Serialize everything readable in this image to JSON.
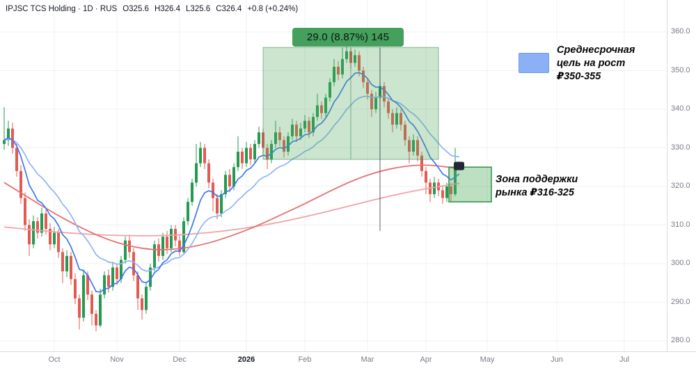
{
  "header": {
    "title": "IPJSC TCS Holding · 1D · RUS",
    "ohlc": [
      "O325.6",
      "H326.4",
      "L325.6",
      "C326.4"
    ],
    "change": "+0.8 (+0.24%)"
  },
  "annotations": {
    "measure_label": "29.0 (8.87%) 145",
    "target_lines": [
      "Среднесрочная",
      "цель на рост",
      "₽350-355"
    ],
    "support_lines": [
      "Зона поддержки",
      "рынка ₽316-325"
    ]
  },
  "price_axis": {
    "labels": [
      "360.0",
      "350.0",
      "340.0",
      "330.0",
      "320.0",
      "310.0",
      "300.0",
      "290.0",
      "280.0"
    ]
  },
  "time_axis": {
    "labels": [
      "Oct",
      "Nov",
      "Dec",
      "2026",
      "Feb",
      "Mar",
      "Apr",
      "May",
      "Jun",
      "Jul"
    ]
  },
  "colors": {
    "up": "#239a52",
    "down": "#e25a52",
    "ema_fast": "#3c78f0",
    "ema_slow": "#8fb3f7",
    "ma_red_fast": "#e57070",
    "ma_red_slow": "#efa2a8",
    "grid": "#eef0f4",
    "axis_border": "#d8dbe1",
    "box_fill": "rgba(82,170,94,0.30)",
    "box_border": "rgba(40,120,60,0.50)",
    "zone_fill": "rgba(82,170,94,0.38)",
    "zone_border": "#2f8f46",
    "badge_bg": "#44a05c",
    "swatch_blue": "#8cb0f6",
    "measure_line": "#3a4150",
    "flag_bg": "#232836",
    "text_dark": "#131722",
    "text_gray": "#787b86"
  },
  "chart_data": {
    "type": "candlestick",
    "title": "IPJSC TCS Holding",
    "timeframe": "1D",
    "region": "RUS",
    "ylim": [
      278,
      362
    ],
    "price_ticks": [
      360,
      350,
      340,
      330,
      320,
      310,
      300,
      290,
      280
    ],
    "last_bar": {
      "o": 325.6,
      "h": 326.4,
      "l": 325.6,
      "c": 326.4,
      "change": 0.8,
      "change_pct": 0.24
    },
    "measurement": {
      "price_change": 29.0,
      "percent": 8.87,
      "value": 145,
      "from_price": 327,
      "to_price": 356
    },
    "target_zone_prices": [
      350,
      355
    ],
    "support_zone_prices": [
      316,
      325
    ],
    "month_ticks": [
      {
        "label": "Oct",
        "index": 12
      },
      {
        "label": "Nov",
        "index": 27
      },
      {
        "label": "Dec",
        "index": 42
      },
      {
        "label": "2026",
        "index": 58,
        "bold": true
      },
      {
        "label": "Feb",
        "index": 72
      },
      {
        "label": "Mar",
        "index": 87
      },
      {
        "label": "Apr",
        "index": 101
      },
      {
        "label": "May",
        "px": 700
      },
      {
        "label": "Jun",
        "px": 800
      },
      {
        "label": "Jul",
        "px": 897
      }
    ],
    "candles": [
      [
        331,
        340.5,
        329.5,
        332
      ],
      [
        332,
        337,
        330.5,
        335
      ],
      [
        335,
        336.5,
        328.5,
        330
      ],
      [
        330,
        331,
        322.5,
        324
      ],
      [
        324,
        325.5,
        315.5,
        317
      ],
      [
        317,
        318.5,
        308.5,
        310
      ],
      [
        310,
        311.5,
        302,
        305
      ],
      [
        305,
        312.5,
        304,
        311
      ],
      [
        311,
        312,
        306.5,
        308
      ],
      [
        308,
        314.5,
        307,
        313
      ],
      [
        313,
        314,
        307.5,
        309
      ],
      [
        309,
        310.5,
        303.5,
        305
      ],
      [
        305,
        309.5,
        304,
        308
      ],
      [
        308,
        309,
        301.5,
        303
      ],
      [
        303,
        304,
        295,
        298
      ],
      [
        298,
        303.5,
        296.5,
        302
      ],
      [
        302,
        303,
        294.5,
        296
      ],
      [
        296,
        297.5,
        289.5,
        291
      ],
      [
        291,
        292,
        283,
        286
      ],
      [
        286,
        298.5,
        285,
        297
      ],
      [
        297,
        298,
        290.5,
        292
      ],
      [
        292,
        293,
        284,
        287
      ],
      [
        287,
        288,
        282.5,
        284
      ],
      [
        284,
        293.5,
        283.5,
        292
      ],
      [
        292,
        298,
        291,
        297
      ],
      [
        297,
        298.5,
        292.5,
        294
      ],
      [
        294,
        300.5,
        293,
        299
      ],
      [
        299,
        300,
        294.5,
        296
      ],
      [
        296,
        302,
        295,
        301
      ],
      [
        301,
        307,
        300,
        306
      ],
      [
        306,
        307.5,
        301.5,
        303
      ],
      [
        303,
        304,
        295.5,
        297
      ],
      [
        297,
        298,
        288,
        291
      ],
      [
        291,
        292,
        285.5,
        288
      ],
      [
        288,
        295,
        287,
        294
      ],
      [
        294,
        300,
        293,
        299
      ],
      [
        299,
        306,
        298,
        305
      ],
      [
        305,
        306.5,
        300.5,
        302
      ],
      [
        302,
        308,
        301,
        307
      ],
      [
        307,
        308.5,
        302.5,
        304
      ],
      [
        304,
        310,
        303,
        309
      ],
      [
        309,
        310,
        304.5,
        306
      ],
      [
        306,
        307.5,
        302,
        303
      ],
      [
        303,
        312,
        302.5,
        311
      ],
      [
        311,
        317,
        310,
        316
      ],
      [
        316,
        322,
        315,
        321
      ],
      [
        321,
        331,
        320,
        326
      ],
      [
        326,
        331.5,
        325,
        330
      ],
      [
        330,
        331,
        324.5,
        326
      ],
      [
        326,
        327,
        319.5,
        321
      ],
      [
        321,
        322,
        313.5,
        317
      ],
      [
        317,
        318,
        311.5,
        313
      ],
      [
        313,
        319,
        312,
        318
      ],
      [
        318,
        324,
        317,
        323
      ],
      [
        323,
        324.5,
        318.5,
        320
      ],
      [
        320,
        326,
        319,
        325
      ],
      [
        325,
        333,
        324,
        329
      ],
      [
        329,
        330,
        324.5,
        326
      ],
      [
        326,
        331.5,
        325,
        330
      ],
      [
        330,
        331,
        325.5,
        327
      ],
      [
        327,
        332,
        326,
        331
      ],
      [
        331,
        335.5,
        330,
        334
      ],
      [
        334,
        335,
        328.5,
        330
      ],
      [
        330,
        331,
        324.5,
        327
      ],
      [
        327,
        332,
        326,
        331
      ],
      [
        331,
        337,
        330,
        334
      ],
      [
        334,
        335.5,
        330.5,
        332
      ],
      [
        332,
        333,
        327.5,
        329
      ],
      [
        329,
        334,
        328,
        333
      ],
      [
        333,
        337.5,
        332,
        336
      ],
      [
        336,
        337,
        331.5,
        333
      ],
      [
        333,
        336.5,
        332,
        335
      ],
      [
        335,
        338.5,
        334,
        337
      ],
      [
        337,
        338,
        332.5,
        334
      ],
      [
        334,
        339,
        333,
        338
      ],
      [
        338,
        344,
        337,
        341
      ],
      [
        341,
        342,
        337.5,
        339
      ],
      [
        339,
        344,
        338,
        343
      ],
      [
        343,
        348,
        342,
        347
      ],
      [
        347,
        353,
        346,
        351
      ],
      [
        351,
        352.5,
        347.5,
        349
      ],
      [
        349,
        356,
        348,
        353
      ],
      [
        353,
        357.5,
        352,
        355
      ],
      [
        355,
        356,
        350.5,
        352
      ],
      [
        352,
        355.5,
        351,
        354
      ],
      [
        354,
        355,
        348.5,
        350
      ],
      [
        350,
        351,
        345.5,
        347
      ],
      [
        347,
        348,
        342.5,
        344
      ],
      [
        344,
        345,
        338,
        340
      ],
      [
        340,
        344.5,
        339,
        343
      ],
      [
        343,
        347,
        342,
        346
      ],
      [
        346,
        347,
        340.5,
        342
      ],
      [
        342,
        343,
        337.5,
        339
      ],
      [
        339,
        340,
        334,
        336
      ],
      [
        336,
        340.5,
        335,
        339
      ],
      [
        339,
        340,
        334.5,
        336
      ],
      [
        336,
        337,
        330.5,
        332
      ],
      [
        332,
        333,
        326,
        329
      ],
      [
        329,
        333.5,
        328,
        332
      ],
      [
        332,
        333,
        326.5,
        328
      ],
      [
        328,
        329,
        322.5,
        324
      ],
      [
        324,
        325,
        318,
        321
      ],
      [
        321,
        322,
        316,
        318
      ],
      [
        318,
        322.5,
        317,
        321
      ],
      [
        321,
        322,
        317.5,
        319
      ],
      [
        319,
        320,
        315.5,
        317
      ],
      [
        317,
        321,
        316,
        320
      ],
      [
        320,
        321,
        316,
        318
      ],
      [
        318,
        330,
        317.5,
        325.5
      ],
      [
        325.6,
        326.4,
        325.6,
        326.4
      ]
    ],
    "ma_lines": {
      "blue_fast_period": 9,
      "blue_slow_period": 21,
      "red_fast": [
        [
          0,
          321
        ],
        [
          6,
          317
        ],
        [
          12,
          313
        ],
        [
          18,
          309.5
        ],
        [
          24,
          306.5
        ],
        [
          30,
          304.5
        ],
        [
          36,
          303.5
        ],
        [
          42,
          303.8
        ],
        [
          48,
          305
        ],
        [
          54,
          307
        ],
        [
          60,
          309.5
        ],
        [
          66,
          312.5
        ],
        [
          72,
          315.5
        ],
        [
          78,
          318.8
        ],
        [
          84,
          321.8
        ],
        [
          90,
          324
        ],
        [
          96,
          325.3
        ],
        [
          101,
          325.6
        ],
        [
          105,
          325.2
        ],
        [
          109,
          324.6
        ]
      ],
      "red_slow": [
        [
          0,
          309.5
        ],
        [
          8,
          308.6
        ],
        [
          16,
          307.9
        ],
        [
          24,
          307.4
        ],
        [
          32,
          307.2
        ],
        [
          40,
          307.3
        ],
        [
          48,
          307.9
        ],
        [
          56,
          308.9
        ],
        [
          64,
          310.3
        ],
        [
          72,
          312.1
        ],
        [
          80,
          314.2
        ],
        [
          88,
          316.4
        ],
        [
          96,
          318.4
        ],
        [
          103,
          319.8
        ],
        [
          109,
          320.8
        ]
      ]
    },
    "overlays": {
      "measure_box": {
        "from_index": 62,
        "to_index": 104,
        "price_top": 356,
        "price_bottom": 327
      },
      "support_zone": {
        "x_from": 645,
        "x_to": 706,
        "price_top": 325,
        "price_bottom": 316
      },
      "measure_vline": {
        "index": 90,
        "price_top": 356,
        "price_bottom": 308.5
      },
      "last_bar_flag": {
        "x": 652,
        "price": 325.3
      }
    },
    "legend_position": "none",
    "grid": true
  }
}
